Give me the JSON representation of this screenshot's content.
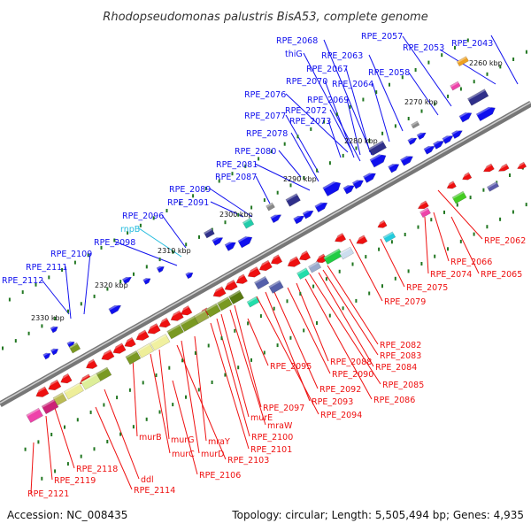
{
  "title": "Rhodopseudomonas palustris BisA53, complete genome",
  "footer": {
    "accession": "Accession: NC_008435",
    "summary": "Topology: circular; Length: 5,505,494 bp; Genes: 4,935"
  },
  "colors": {
    "forward": "#1010ee",
    "reverse": "#ee1010",
    "rna": "#22bbdd",
    "backbone": "#888888",
    "tick": "#227722"
  },
  "kbp_marks": [
    "2260 kbp",
    "2270 kbp",
    "2280 kbp",
    "2290 kbp",
    "2300 kbp",
    "2310 kbp",
    "2320 kbp",
    "2330 kbp"
  ],
  "labels_forward": [
    "RPE_2043",
    "RPE_2053",
    "RPE_2057",
    "RPE_2058",
    "RPE_2063",
    "RPE_2064",
    "RPE_2068",
    "thiG",
    "RPE_2067",
    "RPE_2070",
    "RPE_2069",
    "RPE_2076",
    "RPE_2072",
    "RPE_2073",
    "RPE_2077",
    "RPE_2078",
    "RPE_2080",
    "RPE_2081",
    "RPE_2087",
    "RPE_2089",
    "RPE_2091",
    "RPE_2096",
    "rnpB",
    "RPE_2098",
    "RPE_2109",
    "RPE_2111",
    "RPE_2112"
  ],
  "labels_reverse": [
    "RPE_2062",
    "RPE_2065",
    "RPE_2066",
    "RPE_2074",
    "RPE_2075",
    "RPE_2079",
    "RPE_2082",
    "RPE_2083",
    "RPE_2084",
    "RPE_2085",
    "RPE_2086",
    "RPE_2088",
    "RPE_2090",
    "RPE_2092",
    "RPE_2093",
    "RPE_2094",
    "RPE_2095",
    "RPE_2097",
    "mraW",
    "murE",
    "RPE_2100",
    "RPE_2101",
    "mraY",
    "murD",
    "RPE_2103",
    "murG",
    "murC",
    "murB",
    "RPE_2106",
    "ddl",
    "RPE_2114",
    "RPE_2118",
    "RPE_2119",
    "RPE_2121"
  ]
}
